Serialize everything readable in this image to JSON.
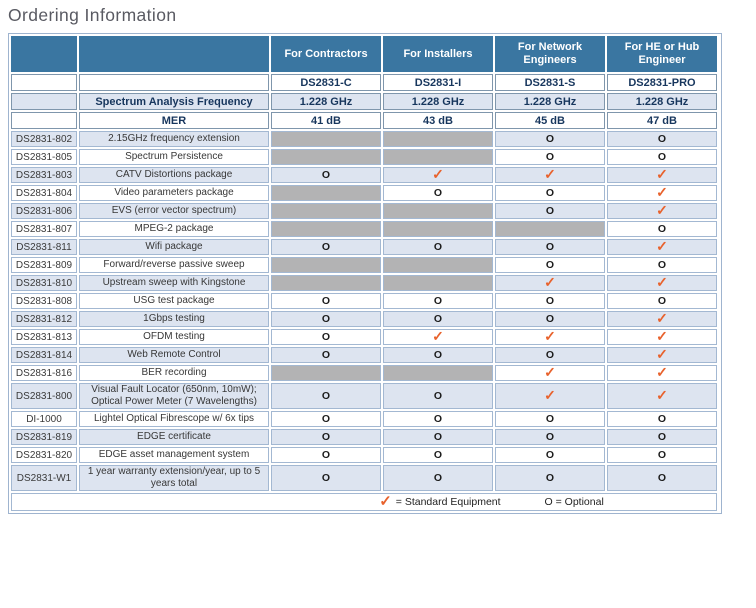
{
  "page_title": "Ordering Information",
  "colors": {
    "header_blue": "#3a76a1",
    "stripe_blue": "#dde4f0",
    "na_gray": "#b3b3b4",
    "check_orange": "#e8622d",
    "navy_text": "#17365d",
    "border_light": "#a3b8d2",
    "border_gray": "#7f96ac"
  },
  "symbols": {
    "standard": "✓",
    "optional": "O"
  },
  "table": {
    "audience_headers": [
      "For Contractors",
      "For Installers",
      "For Network Engineers",
      "For HE or Hub Engineer"
    ],
    "models": [
      "DS2831-C",
      "DS2831-I",
      "DS2831-S",
      "DS2831-PRO"
    ],
    "spec_rows": [
      {
        "label": "Spectrum Analysis Frequency",
        "values": [
          "1.228 GHz",
          "1.228 GHz",
          "1.228 GHz",
          "1.228 GHz"
        ]
      },
      {
        "label": "MER",
        "values": [
          "41 dB",
          "43 dB",
          "45 dB",
          "47 dB"
        ]
      }
    ],
    "feature_rows": [
      {
        "code": "DS2831-802",
        "description": "2.15GHz frequency extension",
        "cells": [
          "N",
          "N",
          "O",
          "O"
        ]
      },
      {
        "code": "DS2831-805",
        "description": "Spectrum Persistence",
        "cells": [
          "N",
          "N",
          "O",
          "O"
        ]
      },
      {
        "code": "DS2831-803",
        "description": "CATV Distortions package",
        "cells": [
          "O",
          "S",
          "S",
          "S"
        ]
      },
      {
        "code": "DS2831-804",
        "description": "Video parameters package",
        "cells": [
          "N",
          "O",
          "O",
          "S"
        ]
      },
      {
        "code": "DS2831-806",
        "description": "EVS (error vector spectrum)",
        "cells": [
          "N",
          "N",
          "O",
          "S"
        ]
      },
      {
        "code": "DS2831-807",
        "description": "MPEG-2 package",
        "cells": [
          "N",
          "N",
          "N",
          "O"
        ]
      },
      {
        "code": "DS2831-811",
        "description": "Wifi package",
        "cells": [
          "O",
          "O",
          "O",
          "S"
        ]
      },
      {
        "code": "DS2831-809",
        "description": "Forward/reverse passive sweep",
        "cells": [
          "N",
          "N",
          "O",
          "O"
        ]
      },
      {
        "code": "DS2831-810",
        "description": "Upstream sweep with Kingstone",
        "cells": [
          "N",
          "N",
          "S",
          "S"
        ]
      },
      {
        "code": "DS2831-808",
        "description": "USG test package",
        "cells": [
          "O",
          "O",
          "O",
          "O"
        ]
      },
      {
        "code": "DS2831-812",
        "description": "1Gbps testing",
        "cells": [
          "O",
          "O",
          "O",
          "S"
        ]
      },
      {
        "code": "DS2831-813",
        "description": "OFDM testing",
        "cells": [
          "O",
          "S",
          "S",
          "S"
        ]
      },
      {
        "code": "DS2831-814",
        "description": "Web Remote Control",
        "cells": [
          "O",
          "O",
          "O",
          "S"
        ]
      },
      {
        "code": "DS2831-816",
        "description": "BER recording",
        "cells": [
          "N",
          "N",
          "S",
          "S"
        ]
      },
      {
        "code": "DS2831-800",
        "description": "Visual Fault Locator (650nm, 10mW); Optical Power Meter (7 Wavelengths)",
        "cells": [
          "O",
          "O",
          "S",
          "S"
        ]
      },
      {
        "code": "DI-1000",
        "description": "Lightel Optical Fibrescope w/ 6x tips",
        "cells": [
          "O",
          "O",
          "O",
          "O"
        ]
      },
      {
        "code": "DS2831-819",
        "description": "EDGE certificate",
        "cells": [
          "O",
          "O",
          "O",
          "O"
        ]
      },
      {
        "code": "DS2831-820",
        "description": "EDGE asset management system",
        "cells": [
          "O",
          "O",
          "O",
          "O"
        ]
      },
      {
        "code": "DS2831-W1",
        "description": "1 year warranty extension/year, up to 5 years total",
        "cells": [
          "O",
          "O",
          "O",
          "O"
        ]
      }
    ],
    "legend": {
      "standard_label": "= Standard Equipment",
      "optional_label": "O = Optional"
    }
  }
}
